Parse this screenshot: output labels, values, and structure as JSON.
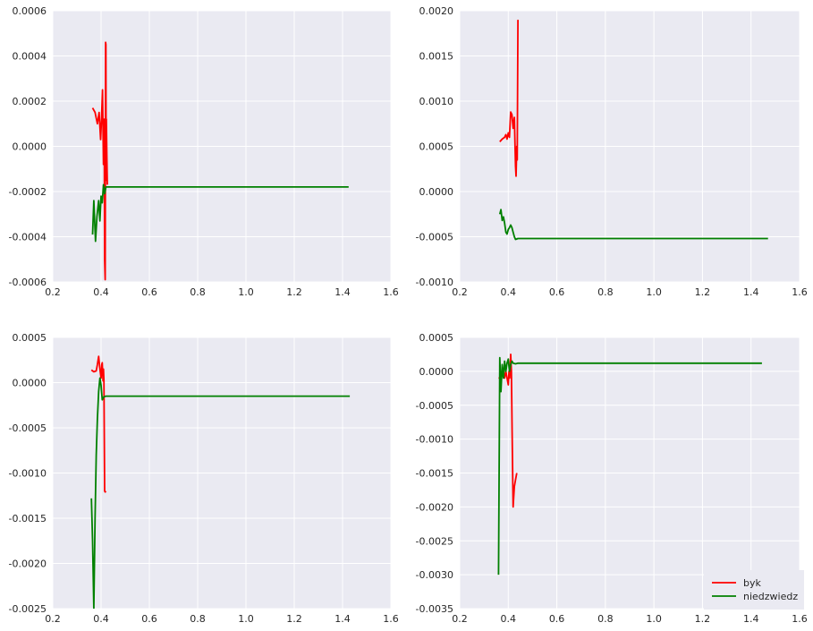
{
  "style": {
    "axes_bg": "#eaeaf2",
    "grid_color": "#ffffff",
    "text_color": "#262626"
  },
  "chart_data": [
    {
      "type": "line",
      "grid": true,
      "xlim": [
        0.2,
        1.6
      ],
      "ylim": [
        -0.0006,
        0.0006
      ],
      "xticks": [
        "0.2",
        "0.4",
        "0.6",
        "0.8",
        "1.0",
        "1.2",
        "1.4",
        "1.6"
      ],
      "yticks": [
        "-0.0006",
        "-0.0004",
        "-0.0002",
        "0.0000",
        "0.0002",
        "0.0004",
        "0.0006"
      ],
      "series": [
        {
          "color": "#ff0000",
          "x": [
            0.365,
            0.375,
            0.385,
            0.392,
            0.398,
            0.402,
            0.406,
            0.41,
            0.413,
            0.415,
            0.417,
            0.419,
            0.42,
            0.421,
            0.422,
            0.424,
            0.426
          ],
          "y": [
            0.00017,
            0.00015,
            0.0001,
            0.00015,
            3e-05,
            0.00012,
            0.00025,
            -8e-05,
            0.00012,
            -0.0005,
            -0.00059,
            0.00046,
            0.00045,
            -0.00015,
            0.00012,
            -5e-05,
            -0.00017
          ]
        },
        {
          "color": "#008000",
          "x": [
            0.365,
            0.37,
            0.377,
            0.383,
            0.39,
            0.395,
            0.4,
            0.405,
            0.41,
            0.415,
            0.42,
            1.425
          ],
          "y": [
            -0.00039,
            -0.00024,
            -0.00042,
            -0.00031,
            -0.00024,
            -0.00033,
            -0.00022,
            -0.00025,
            -0.00017,
            -0.00021,
            -0.00018,
            -0.00018
          ]
        }
      ]
    },
    {
      "type": "line",
      "grid": true,
      "xlim": [
        0.2,
        1.6
      ],
      "ylim": [
        -0.001,
        0.002
      ],
      "xticks": [
        "0.2",
        "0.4",
        "0.6",
        "0.8",
        "1.0",
        "1.2",
        "1.4",
        "1.6"
      ],
      "yticks": [
        "-0.0010",
        "-0.0005",
        "0.0000",
        "0.0005",
        "0.0010",
        "0.0015",
        "0.0020"
      ],
      "series": [
        {
          "color": "#ff0000",
          "x": [
            0.365,
            0.375,
            0.385,
            0.39,
            0.395,
            0.4,
            0.405,
            0.41,
            0.415,
            0.42,
            0.425,
            0.43,
            0.432,
            0.435,
            0.437,
            0.44
          ],
          "y": [
            0.00055,
            0.00058,
            0.0006,
            0.00063,
            0.00058,
            0.00065,
            0.0006,
            0.00088,
            0.00085,
            0.0007,
            0.00082,
            0.00028,
            0.00017,
            0.0005,
            0.00035,
            0.0019
          ]
        },
        {
          "color": "#008000",
          "x": [
            0.365,
            0.37,
            0.375,
            0.38,
            0.385,
            0.39,
            0.395,
            0.4,
            0.405,
            0.41,
            0.415,
            0.42,
            0.425,
            0.43,
            0.44,
            0.45,
            1.47
          ],
          "y": [
            -0.00025,
            -0.0002,
            -0.00032,
            -0.00028,
            -0.00035,
            -0.00045,
            -0.00047,
            -0.00042,
            -0.0004,
            -0.00037,
            -0.0004,
            -0.00045,
            -0.0005,
            -0.00053,
            -0.00052,
            -0.00052,
            -0.00052
          ]
        }
      ]
    },
    {
      "type": "line",
      "grid": true,
      "xlim": [
        0.2,
        1.6
      ],
      "ylim": [
        -0.0025,
        0.0005
      ],
      "xticks": [
        "0.2",
        "0.4",
        "0.6",
        "0.8",
        "1.0",
        "1.2",
        "1.4",
        "1.6"
      ],
      "yticks": [
        "-0.0025",
        "-0.0020",
        "-0.0015",
        "-0.0010",
        "-0.0005",
        "0.0000",
        "0.0005"
      ],
      "series": [
        {
          "color": "#ff0000",
          "x": [
            0.36,
            0.37,
            0.38,
            0.385,
            0.39,
            0.395,
            0.4,
            0.403,
            0.405,
            0.408,
            0.41,
            0.412,
            0.415,
            0.417,
            0.42
          ],
          "y": [
            0.00014,
            0.00012,
            0.00013,
            0.0002,
            0.00029,
            0.00015,
            5e-05,
            0.0002,
            0.00022,
            2e-05,
            0.00015,
            2e-05,
            -0.0012,
            -0.00121,
            -0.0012
          ]
        },
        {
          "color": "#008000",
          "x": [
            0.36,
            0.365,
            0.37,
            0.375,
            0.38,
            0.385,
            0.39,
            0.395,
            0.4,
            0.405,
            0.41,
            0.42,
            1.43
          ],
          "y": [
            -0.00128,
            -0.00175,
            -0.0025,
            -0.0015,
            -0.0008,
            -0.0004,
            -0.0001,
            5e-05,
            -3e-05,
            -0.00019,
            -0.00016,
            -0.00015,
            -0.00015
          ]
        }
      ]
    },
    {
      "type": "line",
      "grid": true,
      "xlim": [
        0.2,
        1.6
      ],
      "ylim": [
        -0.0035,
        0.0005
      ],
      "xticks": [
        "0.2",
        "0.4",
        "0.6",
        "0.8",
        "1.0",
        "1.2",
        "1.4",
        "1.6"
      ],
      "yticks": [
        "-0.0035",
        "-0.0030",
        "-0.0025",
        "-0.0020",
        "-0.0015",
        "-0.0010",
        "-0.0005",
        "0.0000",
        "0.0005"
      ],
      "legend": {
        "position": "lower-right"
      },
      "series": [
        {
          "name": "byk",
          "color": "#ff0000",
          "x": [
            0.36,
            0.37,
            0.38,
            0.385,
            0.39,
            0.395,
            0.4,
            0.403,
            0.406,
            0.41,
            0.413,
            0.416,
            0.42,
            0.425,
            0.43,
            0.435
          ],
          "y": [
            -0.0001,
            -0.0001,
            0.0,
            -0.0001,
            0.0,
            -0.0001,
            -0.0002,
            0.0,
            -0.0001,
            0.00025,
            0.0,
            -0.0009,
            -0.002,
            -0.0017,
            -0.0016,
            -0.0015
          ]
        },
        {
          "name": "niedzwiedz",
          "color": "#008000",
          "x": [
            0.36,
            0.365,
            0.37,
            0.375,
            0.38,
            0.385,
            0.39,
            0.395,
            0.4,
            0.405,
            0.41,
            0.415,
            0.42,
            0.43,
            0.44,
            0.45,
            1.445
          ],
          "y": [
            -0.003,
            0.0002,
            -0.0003,
            0.0001,
            -0.0001,
            0.00015,
            0.0,
            0.00012,
            0.00018,
            0.0,
            0.0001,
            0.00015,
            0.00012,
            0.00011,
            0.00012,
            0.00012,
            0.00012
          ]
        }
      ]
    }
  ]
}
